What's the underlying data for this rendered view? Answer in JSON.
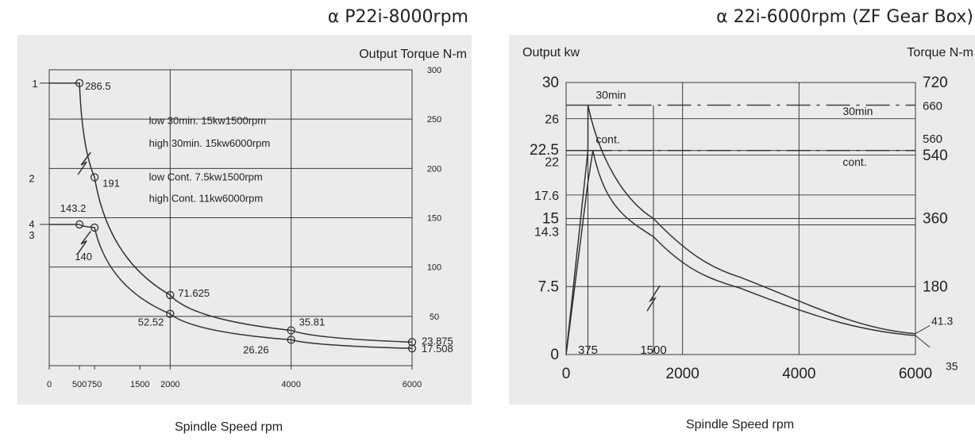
{
  "colors": {
    "panel": "#ebebeb",
    "grid": "#3a3a3a",
    "curve": "#333333",
    "text": "#222222"
  },
  "chart_data": [
    {
      "type": "line",
      "title": "α P22i-8000rpm",
      "ylabel": "Output Torque N-m",
      "xlabel": "Spindle Speed rpm",
      "xlim": [
        0,
        6000
      ],
      "ylim": [
        0,
        300
      ],
      "x_ticks": [
        "0",
        "500",
        "750",
        "1500",
        "2000",
        "4000",
        "6000"
      ],
      "y_ticks": [
        "50",
        "100",
        "150",
        "200",
        "250",
        "300"
      ],
      "annotations": [
        "low 30min. 15kw1500rpm",
        "high 30min. 15kw6000rpm",
        "low Cont. 7.5kw1500rpm",
        "high Cont. 11kw6000rpm"
      ],
      "curve_markers": [
        "1",
        "2",
        "4",
        "3"
      ],
      "series": [
        {
          "points": [
            [
              0,
              286.5
            ],
            [
              500,
              286.5
            ],
            [
              750,
              191
            ],
            [
              2000,
              71.625
            ],
            [
              4000,
              35.81
            ],
            [
              6000,
              23.875
            ]
          ],
          "point_labels": [
            "286.5",
            "191",
            "71.625",
            "35.81",
            "23.875"
          ]
        },
        {
          "points": [
            [
              0,
              143.2
            ],
            [
              500,
              143.2
            ],
            [
              750,
              140
            ],
            [
              2000,
              52.52
            ],
            [
              4000,
              26.26
            ],
            [
              6000,
              17.508
            ]
          ],
          "point_labels": [
            "143.2",
            "140",
            "52.52",
            "26.26",
            "17.508"
          ]
        }
      ]
    },
    {
      "type": "line",
      "title": "α 22i-6000rpm (ZF Gear Box)",
      "ylabel_left": "Output kw",
      "ylabel_right": "Torque N-m",
      "xlabel": "Spindle Speed rpm",
      "xlim": [
        0,
        6000
      ],
      "ylim_left": [
        0,
        30
      ],
      "ylim_right": [
        0,
        720
      ],
      "x_ticks": [
        "0",
        "2000",
        "4000",
        "6000"
      ],
      "x_marks": [
        "375",
        "1500"
      ],
      "left_ticks": [
        "0",
        "7.5",
        "14.3",
        "15",
        "17.6",
        "22",
        "22.5",
        "26",
        "30"
      ],
      "right_ticks": [
        "180",
        "360",
        "540",
        "560",
        "660",
        "720"
      ],
      "end_labels": [
        "41.3",
        "35"
      ],
      "line_labels": [
        "30min",
        "30min",
        "cont.",
        "cont."
      ],
      "series": [
        {
          "points": [
            [
              0,
              0
            ],
            [
              375,
              22.5
            ],
            [
              375,
              27.5
            ],
            [
              1500,
              15
            ],
            [
              3000,
              8.5
            ],
            [
              6000,
              2.3
            ]
          ]
        },
        {
          "points": [
            [
              0,
              0
            ],
            [
              375,
              19
            ],
            [
              460,
              22.5
            ],
            [
              1500,
              13
            ],
            [
              3000,
              7.3
            ],
            [
              6000,
              2.1
            ]
          ]
        }
      ]
    }
  ]
}
